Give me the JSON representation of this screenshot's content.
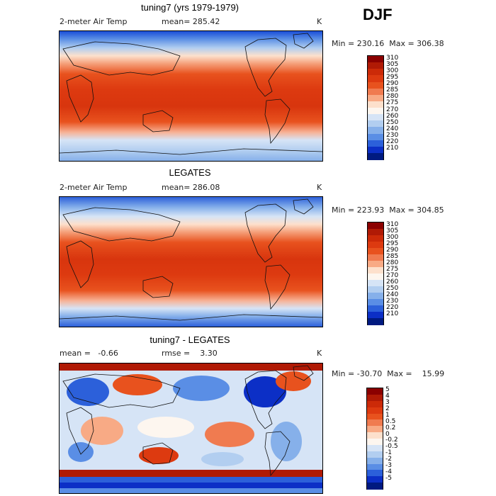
{
  "season": "DJF",
  "panels": [
    {
      "title": "tuning7 (yrs 1979-1979)",
      "variable": "2-meter Air Temp",
      "stat": "mean= 285.42",
      "units": "K",
      "minmax": "Min = 230.16  Max = 306.38",
      "colorbar": {
        "labels": [
          "310",
          "305",
          "300",
          "295",
          "290",
          "285",
          "280",
          "275",
          "270",
          "260",
          "250",
          "240",
          "230",
          "220",
          "210"
        ],
        "colors": [
          "#8b0000",
          "#b01a05",
          "#cc2a08",
          "#dd3a10",
          "#e8521e",
          "#f07b50",
          "#f8aa85",
          "#fde0cc",
          "#fdf6ef",
          "#d6e4f6",
          "#b2cef0",
          "#86b0ea",
          "#5a8ee5",
          "#2c60da",
          "#0c2fc6",
          "#001a80"
        ]
      }
    },
    {
      "title": "LEGATES",
      "variable": "2-meter Air Temp",
      "stat": "mean= 286.08",
      "units": "K",
      "minmax": "Min = 223.93  Max = 304.85",
      "colorbar": {
        "labels": [
          "310",
          "305",
          "300",
          "295",
          "290",
          "285",
          "280",
          "275",
          "270",
          "260",
          "250",
          "240",
          "230",
          "220",
          "210"
        ],
        "colors": [
          "#8b0000",
          "#b01a05",
          "#cc2a08",
          "#dd3a10",
          "#e8521e",
          "#f07b50",
          "#f8aa85",
          "#fde0cc",
          "#fdf6ef",
          "#d6e4f6",
          "#b2cef0",
          "#86b0ea",
          "#5a8ee5",
          "#2c60da",
          "#0c2fc6",
          "#001a80"
        ]
      }
    },
    {
      "title": "tuning7 - LEGATES",
      "stat": "mean =   -0.66",
      "stat2": "rmse =    3.30",
      "units": "K",
      "minmax": "Min = -30.70  Max =    15.99",
      "colorbar": {
        "labels": [
          "5",
          "4",
          "3",
          "2",
          "1",
          "0.5",
          "0.2",
          "0",
          "-0.2",
          "-0.5",
          "-1",
          "-2",
          "-3",
          "-4",
          "-5"
        ],
        "colors": [
          "#8b0000",
          "#b01a05",
          "#cc2a08",
          "#dd3a10",
          "#e8521e",
          "#f07b50",
          "#f8aa85",
          "#fde0cc",
          "#fdf6ef",
          "#d6e4f6",
          "#b2cef0",
          "#86b0ea",
          "#5a8ee5",
          "#2c60da",
          "#0c2fc6",
          "#001a80"
        ]
      }
    }
  ]
}
